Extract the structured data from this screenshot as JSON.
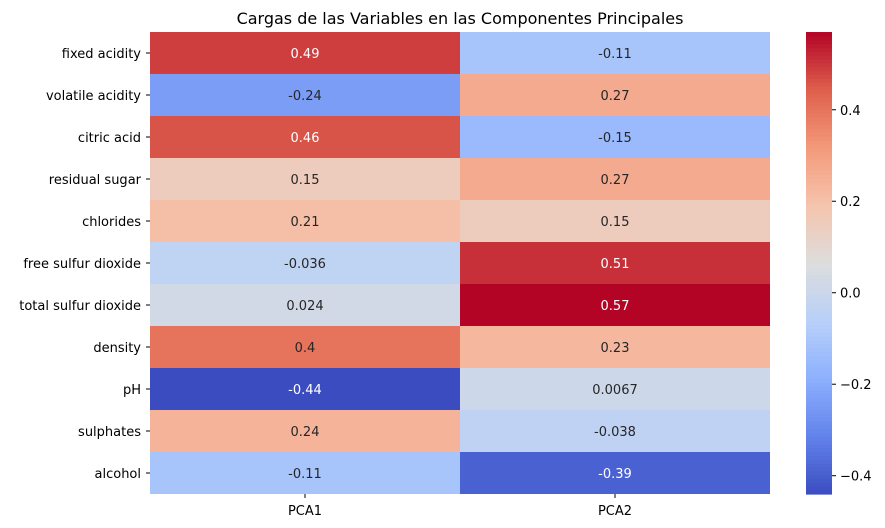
{
  "chart_data": {
    "type": "heatmap",
    "title": "Cargas de las Variables en las Componentes Principales",
    "xlabel": "",
    "ylabel": "",
    "columns": [
      "PCA1",
      "PCA2"
    ],
    "rows": [
      "fixed acidity",
      "volatile acidity",
      "citric acid",
      "residual sugar",
      "chlorides",
      "free sulfur dioxide",
      "total sulfur dioxide",
      "density",
      "pH",
      "sulphates",
      "alcohol"
    ],
    "values": [
      [
        0.49,
        -0.11
      ],
      [
        -0.24,
        0.27
      ],
      [
        0.46,
        -0.15
      ],
      [
        0.15,
        0.27
      ],
      [
        0.21,
        0.15
      ],
      [
        -0.036,
        0.51
      ],
      [
        0.024,
        0.57
      ],
      [
        0.4,
        0.23
      ],
      [
        -0.44,
        0.0067
      ],
      [
        0.24,
        -0.038
      ],
      [
        -0.11,
        -0.39
      ]
    ],
    "labels": [
      [
        "0.49",
        "-0.11"
      ],
      [
        "-0.24",
        "0.27"
      ],
      [
        "0.46",
        "-0.15"
      ],
      [
        "0.15",
        "0.27"
      ],
      [
        "0.21",
        "0.15"
      ],
      [
        "-0.036",
        "0.51"
      ],
      [
        "0.024",
        "0.57"
      ],
      [
        "0.4",
        "0.23"
      ],
      [
        "-0.44",
        "0.0067"
      ],
      [
        "0.24",
        "-0.038"
      ],
      [
        "-0.11",
        "-0.39"
      ]
    ],
    "colormap": "coolwarm",
    "vmin": -0.44,
    "vmax": 0.57,
    "colorbar": {
      "ticks": [
        -0.4,
        -0.2,
        0.0,
        0.2,
        0.4
      ],
      "tick_labels": [
        "−0.4",
        "−0.2",
        "0.0",
        "0.2",
        "0.4"
      ]
    }
  }
}
